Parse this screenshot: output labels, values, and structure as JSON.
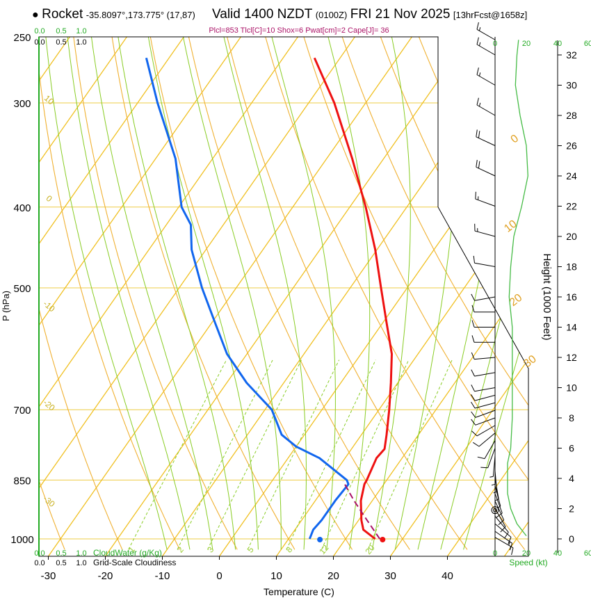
{
  "header": {
    "station": "Rocket",
    "coords": "-35.8097°,173.775° (17,87)",
    "valid": "Valid 1400 NZDT",
    "utc": "(0100Z)",
    "date": "FRI 21 Nov 2025",
    "forecast": "[13hrFcst@1658z]",
    "indices": "Plcl=853 Tlcl[C]=10 Shox=6 Pwat[cm]=2 Cape[J]= 36"
  },
  "colors": {
    "temperature": "#ee1111",
    "dewpoint": "#1166ee",
    "parcel": "#aa1166",
    "isotherm": "#f0c020",
    "dry_adiabat": "#f0b030",
    "moist_adiabat": "#88cc22",
    "mixing_ratio": "#88cc22",
    "isobar": "#eecc44",
    "wind_axis": "#22aa22",
    "index_text": "#aa1166"
  },
  "chart_data": {
    "type": "line",
    "title": "Valid 1400 NZDT (0100Z) FRI 21 Nov 2025",
    "xlabel": "Temperature (C)",
    "ylabel": "P (hPa)",
    "right_axis_label": "Height (1000 Feet)",
    "xlim": [
      -35,
      45
    ],
    "x_ticks": [
      -30,
      -20,
      -10,
      0,
      10,
      20,
      30,
      40
    ],
    "pressure_ticks": [
      250,
      300,
      400,
      500,
      700,
      850,
      1000
    ],
    "height_ticks": [
      0,
      2,
      4,
      6,
      8,
      10,
      12,
      14,
      16,
      18,
      20,
      22,
      24,
      26,
      28,
      30,
      32
    ],
    "isotherm_labels": [
      {
        "t": 0,
        "p": 330,
        "text": "0"
      },
      {
        "t": 10,
        "p": 420,
        "text": "10"
      },
      {
        "t": 20,
        "p": 515,
        "text": "20"
      },
      {
        "t": 30,
        "p": 610,
        "text": "30"
      }
    ],
    "dry_adiabat_labels": [
      {
        "text": "10",
        "p": 297
      },
      {
        "text": "0",
        "p": 390
      },
      {
        "text": "-10",
        "p": 525
      },
      {
        "text": "-20",
        "p": 690
      },
      {
        "text": "-30",
        "p": 900
      }
    ],
    "mixing_ratio_labels": [
      "1",
      "2",
      "3",
      "5",
      "8",
      "12",
      "20"
    ],
    "cloud_water_ticks": [
      "0.0",
      "0.5",
      "1.0"
    ],
    "cloud_water_label": "CloudWater (g/Kg)",
    "cloudiness_ticks": [
      "0.0",
      "0.5",
      "1.0"
    ],
    "cloudiness_label": "Grid-Scale Cloudiness",
    "speed_ticks": [
      "0",
      "20",
      "40",
      "60"
    ],
    "speed_label": "Speed (kt)",
    "temperature": [
      {
        "p": 1000,
        "t": 25.2
      },
      {
        "p": 975,
        "t": 22.0
      },
      {
        "p": 950,
        "t": 20.5
      },
      {
        "p": 900,
        "t": 18.0
      },
      {
        "p": 860,
        "t": 16.6
      },
      {
        "p": 850,
        "t": 16.5
      },
      {
        "p": 800,
        "t": 15.5
      },
      {
        "p": 780,
        "t": 15.8
      },
      {
        "p": 750,
        "t": 14.4
      },
      {
        "p": 700,
        "t": 11.8
      },
      {
        "p": 650,
        "t": 8.8
      },
      {
        "p": 600,
        "t": 5.4
      },
      {
        "p": 550,
        "t": 0.6
      },
      {
        "p": 500,
        "t": -4.6
      },
      {
        "p": 450,
        "t": -10.3
      },
      {
        "p": 400,
        "t": -17.2
      },
      {
        "p": 350,
        "t": -25.5
      },
      {
        "p": 300,
        "t": -35.5
      },
      {
        "p": 265,
        "t": -44.5
      }
    ],
    "dewpoint": [
      {
        "p": 1000,
        "t": 13.7
      },
      {
        "p": 975,
        "t": 13.2
      },
      {
        "p": 950,
        "t": 13.5
      },
      {
        "p": 900,
        "t": 13.5
      },
      {
        "p": 860,
        "t": 13.8
      },
      {
        "p": 850,
        "t": 13.0
      },
      {
        "p": 800,
        "t": 5.5
      },
      {
        "p": 775,
        "t": 0.0
      },
      {
        "p": 750,
        "t": -4.0
      },
      {
        "p": 700,
        "t": -8.8
      },
      {
        "p": 650,
        "t": -16.5
      },
      {
        "p": 600,
        "t": -23.5
      },
      {
        "p": 550,
        "t": -29.5
      },
      {
        "p": 500,
        "t": -36.0
      },
      {
        "p": 450,
        "t": -42.5
      },
      {
        "p": 420,
        "t": -45.7
      },
      {
        "p": 400,
        "t": -49.5
      },
      {
        "p": 350,
        "t": -56.5
      },
      {
        "p": 300,
        "t": -66.5
      },
      {
        "p": 265,
        "t": -74.0
      }
    ],
    "parcel": [
      {
        "p": 1000,
        "t": 26.0
      },
      {
        "p": 950,
        "t": 21.5
      },
      {
        "p": 900,
        "t": 16.8
      },
      {
        "p": 853,
        "t": 12.5
      }
    ],
    "surface_temperature": {
      "p": 1000,
      "t": 26.5
    },
    "surface_dewpoint": {
      "p": 1000,
      "t": 15.5
    },
    "cloud_water_profile": [
      {
        "p": 1013,
        "g": 0
      },
      {
        "p": 250,
        "g": 0
      }
    ],
    "wind_speed_profile": [
      {
        "h": 0.2,
        "kt": 20
      },
      {
        "h": 1,
        "kt": 14
      },
      {
        "h": 2,
        "kt": 10
      },
      {
        "h": 3,
        "kt": 8
      },
      {
        "h": 4,
        "kt": 8
      },
      {
        "h": 5,
        "kt": 8
      },
      {
        "h": 6,
        "kt": 10
      },
      {
        "h": 8,
        "kt": 11
      },
      {
        "h": 10,
        "kt": 11
      },
      {
        "h": 12,
        "kt": 11
      },
      {
        "h": 14,
        "kt": 11
      },
      {
        "h": 16,
        "kt": 9
      },
      {
        "h": 18,
        "kt": 10
      },
      {
        "h": 20,
        "kt": 12
      },
      {
        "h": 22,
        "kt": 17
      },
      {
        "h": 24,
        "kt": 21
      },
      {
        "h": 26,
        "kt": 20
      },
      {
        "h": 28,
        "kt": 16
      },
      {
        "h": 30,
        "kt": 13
      },
      {
        "h": 32,
        "kt": 14
      },
      {
        "h": 33,
        "kt": 15
      }
    ],
    "wind_barbs": [
      {
        "h": 0.1,
        "dir": 120,
        "kt": 15
      },
      {
        "h": 0.5,
        "dir": 125,
        "kt": 15
      },
      {
        "h": 1.0,
        "dir": 130,
        "kt": 12
      },
      {
        "h": 1.5,
        "dir": 140,
        "kt": 10
      },
      {
        "h": 2.0,
        "dir": 150,
        "kt": 10
      },
      {
        "h": 2.5,
        "dir": 155,
        "kt": 10
      },
      {
        "h": 3.0,
        "dir": 160,
        "kt": 10
      },
      {
        "h": 3.5,
        "dir": 165,
        "kt": 8
      },
      {
        "h": 4.0,
        "dir": 170,
        "kt": 8
      },
      {
        "h": 4.5,
        "dir": 175,
        "kt": 8
      },
      {
        "h": 5.0,
        "dir": 180,
        "kt": 8
      },
      {
        "h": 5.5,
        "dir": 185,
        "kt": 8
      },
      {
        "h": 6.0,
        "dir": 200,
        "kt": 10
      },
      {
        "h": 6.5,
        "dir": 210,
        "kt": 10
      },
      {
        "h": 7.0,
        "dir": 230,
        "kt": 10
      },
      {
        "h": 7.5,
        "dir": 240,
        "kt": 10
      },
      {
        "h": 8.0,
        "dir": 250,
        "kt": 10
      },
      {
        "h": 8.5,
        "dir": 250,
        "kt": 10
      },
      {
        "h": 9.0,
        "dir": 255,
        "kt": 10
      },
      {
        "h": 9.5,
        "dir": 255,
        "kt": 10
      },
      {
        "h": 10.0,
        "dir": 260,
        "kt": 10
      },
      {
        "h": 11.0,
        "dir": 260,
        "kt": 10
      },
      {
        "h": 12.0,
        "dir": 265,
        "kt": 10
      },
      {
        "h": 13.0,
        "dir": 270,
        "kt": 10
      },
      {
        "h": 14.0,
        "dir": 270,
        "kt": 10
      },
      {
        "h": 15.0,
        "dir": 270,
        "kt": 10
      },
      {
        "h": 16.0,
        "dir": 260,
        "kt": 10
      },
      {
        "h": 18.0,
        "dir": 280,
        "kt": 10
      },
      {
        "h": 20.0,
        "dir": 285,
        "kt": 15
      },
      {
        "h": 22.0,
        "dir": 290,
        "kt": 15
      },
      {
        "h": 24.0,
        "dir": 295,
        "kt": 20
      },
      {
        "h": 26.0,
        "dir": 295,
        "kt": 20
      },
      {
        "h": 28.0,
        "dir": 300,
        "kt": 15
      },
      {
        "h": 30.0,
        "dir": 300,
        "kt": 15
      },
      {
        "h": 32.0,
        "dir": 300,
        "kt": 15
      },
      {
        "h": 33.0,
        "dir": 300,
        "kt": 15
      }
    ]
  }
}
